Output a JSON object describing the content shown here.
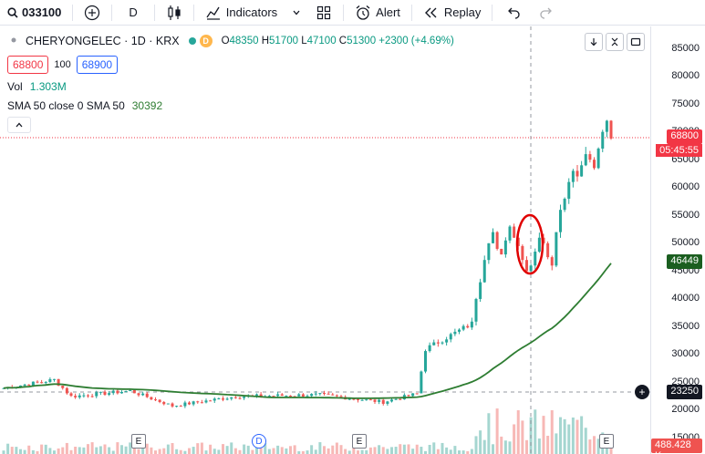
{
  "toolbar": {
    "symbol": "033100",
    "interval": "D",
    "indicators_label": "Indicators",
    "alert_label": "Alert",
    "replay_label": "Replay"
  },
  "legend": {
    "title": "CHERYONGELEC · 1D · KRX",
    "d_badge": "D",
    "ohlc": {
      "o_key": "O",
      "o": "48350",
      "h_key": "H",
      "h": "51700",
      "l_key": "L",
      "l": "47100",
      "c_key": "C",
      "c": "51300",
      "change": "+2300 (+4.69%)"
    },
    "sell_price": "68800",
    "qty": "100",
    "buy_price": "68900",
    "vol_label": "Vol",
    "vol_value": "1.303M",
    "sma_label": "SMA 50 close 0 SMA 50",
    "sma_value": "30392"
  },
  "price_axis": {
    "ticks": [
      "85000",
      "80000",
      "75000",
      "70000",
      "65000",
      "60000",
      "55000",
      "50000",
      "45000",
      "40000",
      "35000",
      "30000",
      "25000",
      "20000",
      "15000"
    ],
    "last_price": "68800",
    "countdown": "05:45:55",
    "sma_price": "46449",
    "crosshair_price": "23250",
    "volume_label": "488.428 K"
  },
  "events": [
    "E",
    "D",
    "E",
    "E"
  ],
  "colors": {
    "up": "#26a69a",
    "down": "#ef5350",
    "sma": "#2e7d32",
    "annotation": "#e00000"
  }
}
